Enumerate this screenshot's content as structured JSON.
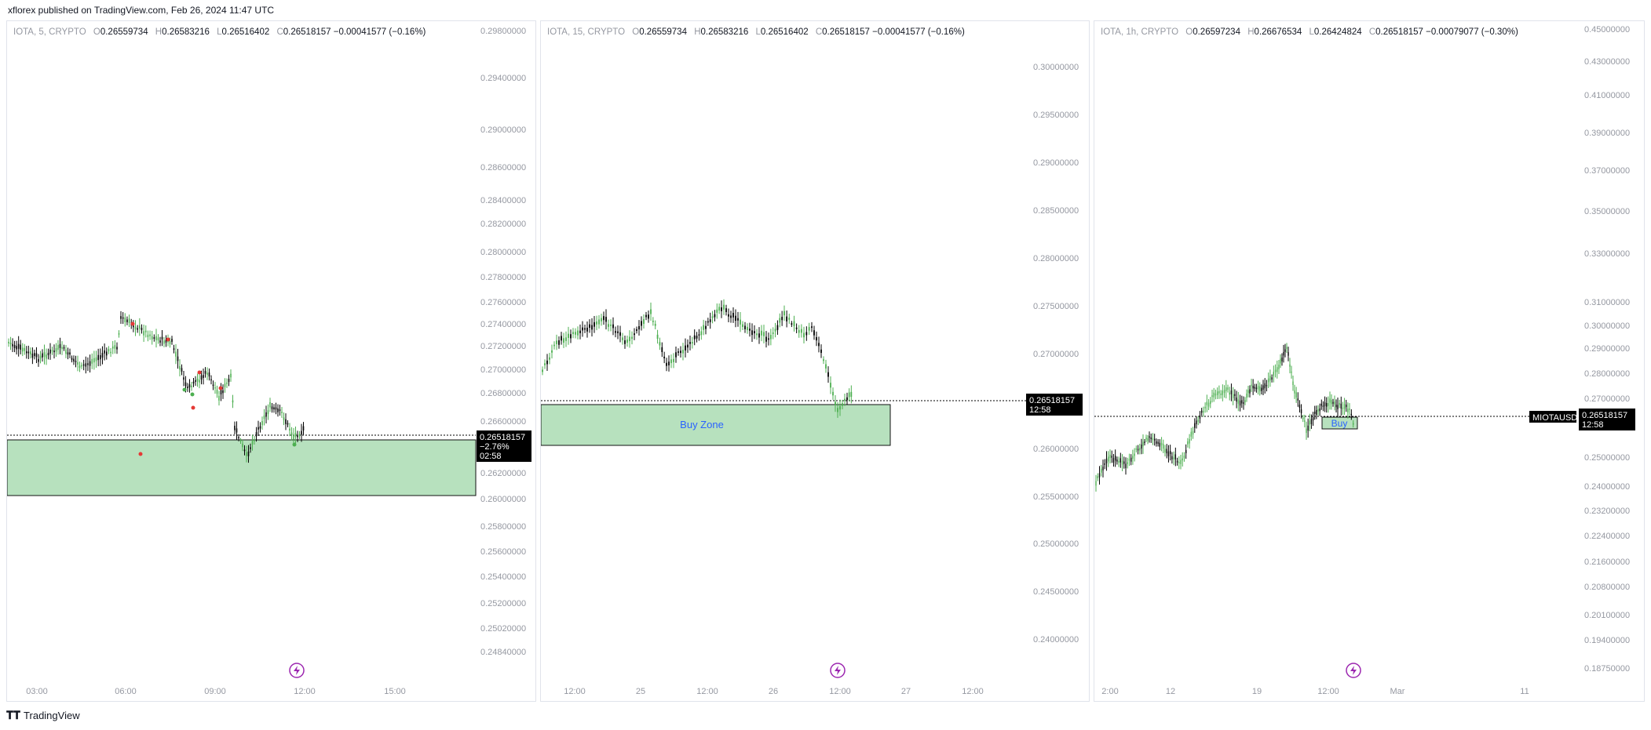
{
  "header": {
    "text": "xflorex published on TradingView.com, Feb 26, 2024 11:47 UTC"
  },
  "footer": {
    "logo_icon": "tradingview-logo-icon",
    "label": "TradingView"
  },
  "colors": {
    "up": "#4caf50",
    "down": "#000000",
    "zone_fill": "#b7e1be",
    "zone_border": "#111111",
    "grid_text": "#9598a1",
    "bolt": "#9c27b0",
    "zone_text": "#2962ff"
  },
  "panels": [
    {
      "legend": {
        "symbol": "IOTA, 5, CRYPTO",
        "o_label": "O",
        "o": "0.26559734",
        "h_label": "H",
        "h": "0.26583216",
        "l_label": "L",
        "l": "0.26516402",
        "c_label": "C",
        "c": "0.26518157",
        "change": "−0.00041577 (−0.16%)"
      },
      "price_badge": {
        "lines": [
          "0.26518157",
          "−2.76%",
          "02:58"
        ]
      },
      "y_ticks": [
        "0.29800000",
        "0.29400000",
        "0.29000000",
        "0.28600000",
        "0.28400000",
        "0.28200000",
        "0.28000000",
        "0.27800000",
        "0.27600000",
        "0.27400000",
        "0.27200000",
        "0.27000000",
        "0.26800000",
        "0.26600000",
        "0.26200000",
        "0.26000000",
        "0.25800000",
        "0.25600000",
        "0.25400000",
        "0.25200000",
        "0.25020000",
        "0.24840000"
      ],
      "x_ticks": [
        "03:00",
        "06:00",
        "09:00",
        "12:00",
        "15:00"
      ],
      "zone_label": "",
      "symbol_tag": ""
    },
    {
      "legend": {
        "symbol": "IOTA, 15, CRYPTO",
        "o_label": "O",
        "o": "0.26559734",
        "h_label": "H",
        "h": "0.26583216",
        "l_label": "L",
        "l": "0.26516402",
        "c_label": "C",
        "c": "0.26518157",
        "change": "−0.00041577 (−0.16%)"
      },
      "price_badge": {
        "lines": [
          "0.26518157",
          "12:58"
        ]
      },
      "y_ticks": [
        "0.30000000",
        "0.29500000",
        "0.29000000",
        "0.28500000",
        "0.28000000",
        "0.27500000",
        "0.27000000",
        "0.26500000",
        "0.26000000",
        "0.25500000",
        "0.25000000",
        "0.24500000",
        "0.24000000"
      ],
      "x_ticks": [
        "12:00",
        "25",
        "12:00",
        "26",
        "12:00",
        "27",
        "12:00"
      ],
      "zone_label": "Buy Zone",
      "symbol_tag": ""
    },
    {
      "legend": {
        "symbol": "IOTA, 1h, CRYPTO",
        "o_label": "O",
        "o": "0.26597234",
        "h_label": "H",
        "h": "0.26676534",
        "l_label": "L",
        "l": "0.26424824",
        "c_label": "C",
        "c": "0.26518157",
        "change": "−0.00079077 (−0.30%)"
      },
      "price_badge": {
        "lines": [
          "0.26518157",
          "12:58"
        ]
      },
      "y_ticks": [
        "0.45000000",
        "0.43000000",
        "0.41000000",
        "0.39000000",
        "0.37000000",
        "0.35000000",
        "0.33000000",
        "0.31000000",
        "0.30000000",
        "0.29000000",
        "0.28000000",
        "0.27000000",
        "0.25000000",
        "0.24000000",
        "0.23200000",
        "0.22400000",
        "0.21600000",
        "0.20800000",
        "0.20100000",
        "0.19400000",
        "0.18750000"
      ],
      "x_ticks": [
        "2:00",
        "12",
        "19",
        "12:00",
        "Mar",
        "11"
      ],
      "zone_label": "Buy",
      "symbol_tag": "MIOTAUSD"
    }
  ],
  "chart_data": [
    {
      "type": "candlestick",
      "symbol": "IOTA",
      "interval": "5",
      "last": 0.26518157,
      "buy_zone": [
        0.26,
        0.2653
      ],
      "x": [
        "03:00",
        "06:00",
        "09:00",
        "12:00"
      ],
      "close": [
        0.2722,
        0.2735,
        0.2708,
        0.2652
      ]
    },
    {
      "type": "candlestick",
      "symbol": "IOTA",
      "interval": "15",
      "last": 0.26518157,
      "buy_zone": [
        0.2608,
        0.2651
      ],
      "x": [
        "25",
        "26",
        "27"
      ],
      "close": [
        0.274,
        0.2752,
        0.2652
      ]
    },
    {
      "type": "candlestick",
      "symbol": "IOTA",
      "interval": "1h",
      "last": 0.26518157,
      "buy_zone": [
        0.2628,
        0.2652
      ],
      "x": [
        "12",
        "19",
        "Mar"
      ],
      "close": [
        0.252,
        0.28,
        0.2652
      ]
    }
  ]
}
